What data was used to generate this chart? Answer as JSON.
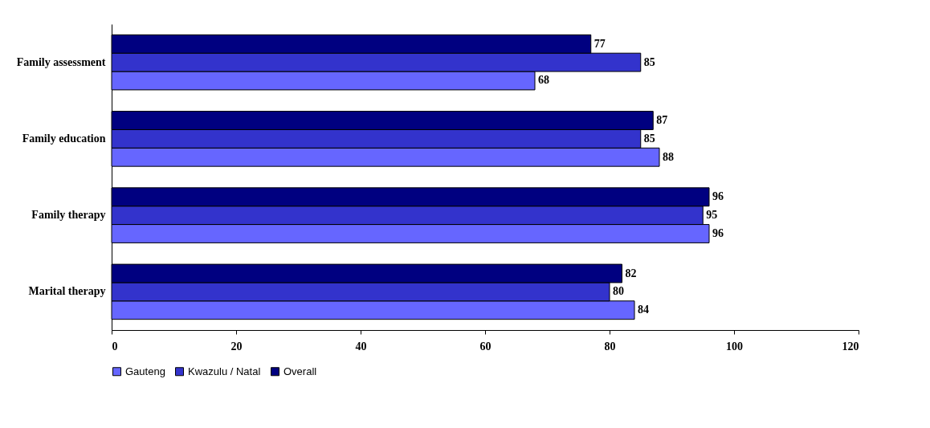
{
  "chart_data": {
    "type": "bar",
    "orientation": "horizontal",
    "categories": [
      "Family assessment",
      "Family education",
      "Family therapy",
      "Marital therapy"
    ],
    "series": [
      {
        "name": "Gauteng",
        "color": "#6666ff",
        "values": [
          68,
          88,
          96,
          84
        ]
      },
      {
        "name": "Kwazulu / Natal",
        "color": "#3333cc",
        "values": [
          85,
          85,
          95,
          80
        ]
      },
      {
        "name": "Overall",
        "color": "#000080",
        "values": [
          77,
          87,
          96,
          82
        ]
      }
    ],
    "xlim": [
      0,
      120
    ],
    "xticks": [
      0,
      20,
      40,
      60,
      80,
      100,
      120
    ],
    "data_labels": true,
    "grid": false,
    "legend": "bottom"
  }
}
